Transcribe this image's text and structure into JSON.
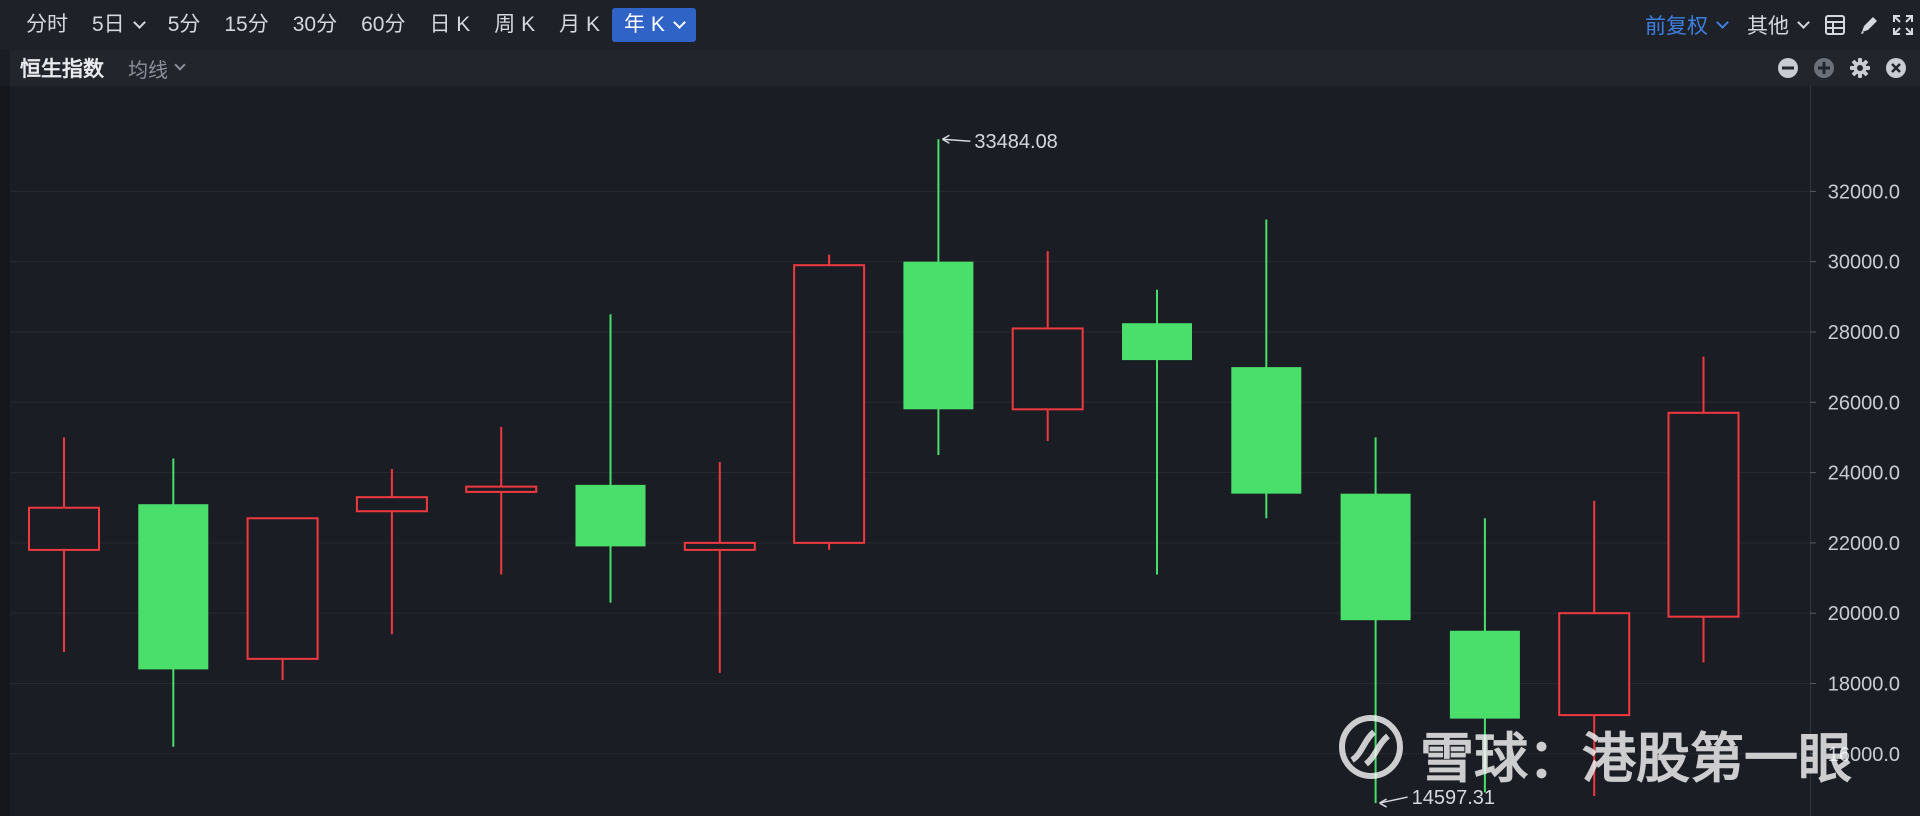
{
  "toolbar": {
    "timeframes": [
      {
        "label": "分时",
        "dropdown": false,
        "active": false
      },
      {
        "label": "5日",
        "dropdown": true,
        "active": false
      },
      {
        "label": "5分",
        "dropdown": false,
        "active": false
      },
      {
        "label": "15分",
        "dropdown": false,
        "active": false
      },
      {
        "label": "30分",
        "dropdown": false,
        "active": false
      },
      {
        "label": "60分",
        "dropdown": false,
        "active": false
      },
      {
        "label": "日 K",
        "dropdown": false,
        "active": false
      },
      {
        "label": "周 K",
        "dropdown": false,
        "active": false
      },
      {
        "label": "月 K",
        "dropdown": false,
        "active": false
      },
      {
        "label": "年 K",
        "dropdown": true,
        "active": true
      }
    ],
    "adjust_label": "前复权",
    "other_label": "其他",
    "icons": [
      "grid-layout-icon",
      "pencil-icon",
      "fullscreen-icon"
    ]
  },
  "subbar": {
    "title": "恒生指数",
    "ma_label": "均线",
    "icons": [
      "minus-circle-icon",
      "plus-circle-icon",
      "gear-icon",
      "close-circle-icon"
    ]
  },
  "colors": {
    "up": "#f0393f",
    "down": "#4ade6a",
    "active": "#2f63c6",
    "link": "#3d7fe0",
    "background": "#1b1d24"
  },
  "chart_data": {
    "type": "candlestick",
    "y_ticks": [
      "32000.0",
      "30000.0",
      "28000.0",
      "26000.0",
      "24000.0",
      "22000.0",
      "20000.0",
      "18000.0",
      "16000.0"
    ],
    "ylim": [
      14400,
      34600
    ],
    "grid": true,
    "candles": [
      {
        "open": 21800,
        "close": 23000,
        "high": 25000,
        "low": 18900
      },
      {
        "open": 23100,
        "close": 18400,
        "high": 24400,
        "low": 16200
      },
      {
        "open": 18700,
        "close": 22700,
        "high": 22700,
        "low": 18100
      },
      {
        "open": 22900,
        "close": 23300,
        "high": 24100,
        "low": 19400
      },
      {
        "open": 23450,
        "close": 23600,
        "high": 25300,
        "low": 21100
      },
      {
        "open": 23650,
        "close": 21900,
        "high": 28500,
        "low": 20300
      },
      {
        "open": 21800,
        "close": 22000,
        "high": 24300,
        "low": 18300
      },
      {
        "open": 22000,
        "close": 29900,
        "high": 30200,
        "low": 21800
      },
      {
        "open": 30000,
        "close": 25800,
        "high": 33484.08,
        "low": 24500
      },
      {
        "open": 25800,
        "close": 28100,
        "high": 30300,
        "low": 24900
      },
      {
        "open": 28250,
        "close": 27200,
        "high": 29200,
        "low": 21100
      },
      {
        "open": 27000,
        "close": 23400,
        "high": 31200,
        "low": 22700
      },
      {
        "open": 23400,
        "close": 19800,
        "high": 25000,
        "low": 14597.31
      },
      {
        "open": 19500,
        "close": 17000,
        "high": 22700,
        "low": 14900
      },
      {
        "open": 17100,
        "close": 20000,
        "high": 23200,
        "low": 14800
      },
      {
        "open": 19900,
        "close": 25700,
        "high": 27300,
        "low": 18600
      }
    ],
    "annotations": [
      {
        "label": "33484.08",
        "candle": 8,
        "at": "high"
      },
      {
        "label": "14597.31",
        "candle": 12,
        "at": "low"
      }
    ]
  },
  "watermark": {
    "text": "雪球：港股第一眼"
  }
}
